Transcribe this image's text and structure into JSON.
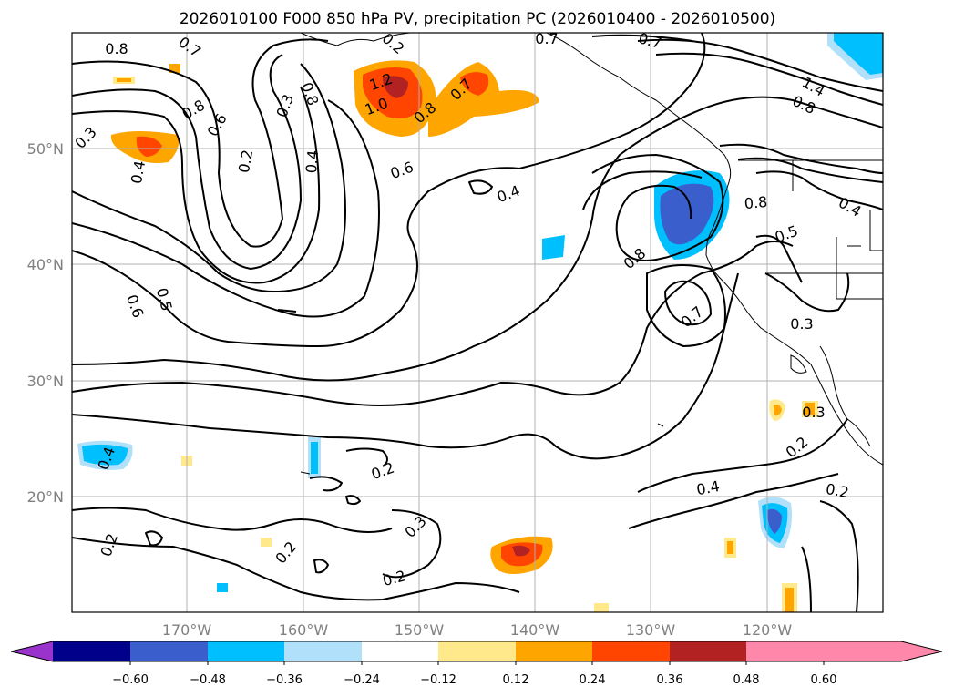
{
  "title": "2026010100 F000 850 hPa PV, precipitation PC (2026010400 - 2026010500)",
  "lat_labels": [
    "50°N",
    "40°N",
    "30°N",
    "20°N"
  ],
  "lon_labels": [
    "170°W",
    "160°W",
    "150°W",
    "140°W",
    "130°W",
    "120°W"
  ],
  "colorbar": {
    "ticks": [
      "−0.60",
      "−0.48",
      "−0.36",
      "−0.24",
      "−0.12",
      "0.12",
      "0.24",
      "0.36",
      "0.48",
      "0.60"
    ],
    "colors": [
      "#9933cc",
      "#00008b",
      "#3a5fcd",
      "#00bfff",
      "#b0e0fa",
      "#ffffff",
      "#ffe98a",
      "#ffa500",
      "#ff4500",
      "#b22222",
      "#ff88aa"
    ]
  },
  "contour_labels": [
    "0.8",
    "0.7",
    "0.3",
    "0.8",
    "0.6",
    "1.2",
    "1.0",
    "0.8",
    "0.7",
    "0.7",
    "0.7",
    "1.4",
    "0.8",
    "0.8",
    "0.4",
    "0.2",
    "0.4",
    "0.3",
    "0.6",
    "0.4",
    "0.8",
    "0.5",
    "0.4",
    "0.8",
    "0.6",
    "0.5",
    "0.7",
    "0.3",
    "0.4",
    "0.3",
    "0.2",
    "0.2",
    "0.3",
    "0.2",
    "0.2",
    "0.2",
    "0.4",
    "0.2",
    "0.2"
  ]
}
